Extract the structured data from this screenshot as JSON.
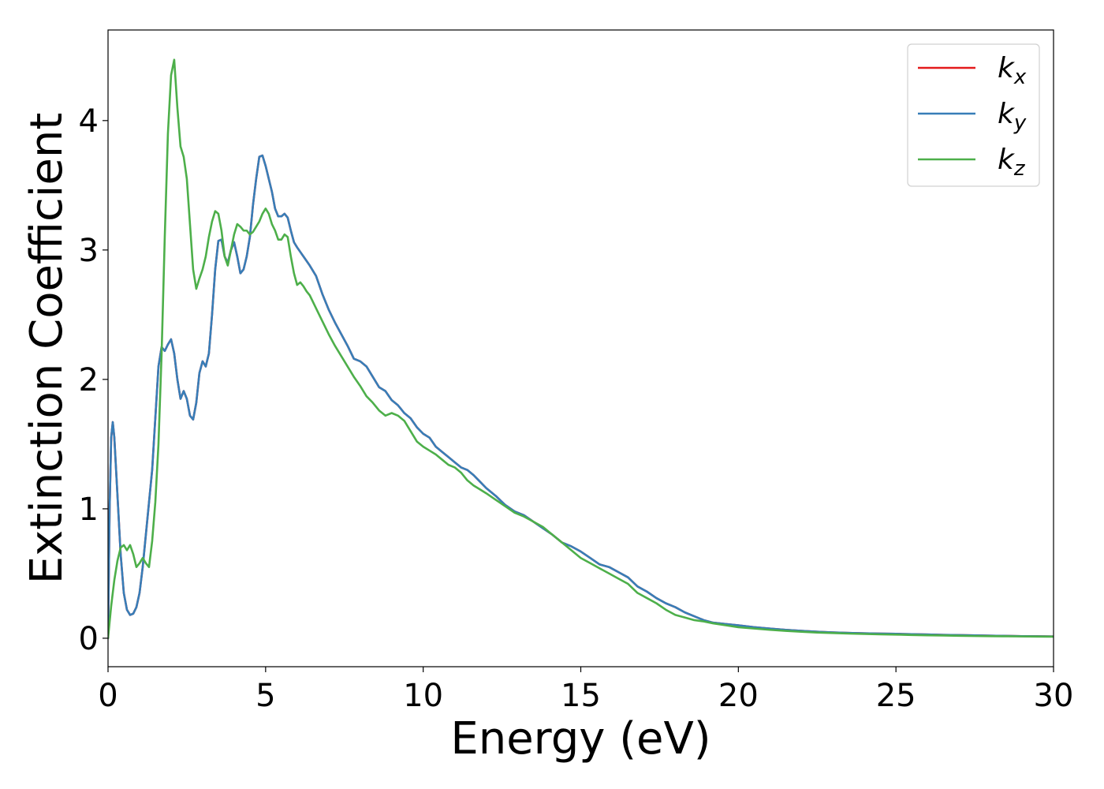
{
  "chart_data": {
    "type": "line",
    "xlabel": "Energy (eV)",
    "ylabel": "Extinction Coefficient",
    "xlim": [
      0,
      30
    ],
    "ylim": [
      -0.22,
      4.7
    ],
    "xticks": [
      0,
      5,
      10,
      15,
      20,
      25,
      30
    ],
    "yticks": [
      0,
      1,
      2,
      3,
      4
    ],
    "grid": false,
    "legend_position": "top-right",
    "series": [
      {
        "name": "k_x",
        "label_base": "k",
        "label_sub": "x",
        "color": "#e41a1c",
        "x": [
          0,
          0.05,
          0.1,
          0.15,
          0.2,
          0.3,
          0.4,
          0.5,
          0.6,
          0.7,
          0.8,
          0.9,
          1.0,
          1.1,
          1.2,
          1.3,
          1.4,
          1.5,
          1.6,
          1.7,
          1.8,
          1.9,
          2.0,
          2.1,
          2.2,
          2.3,
          2.4,
          2.5,
          2.6,
          2.7,
          2.8,
          2.9,
          3.0,
          3.1,
          3.2,
          3.3,
          3.4,
          3.5,
          3.6,
          3.7,
          3.8,
          3.9,
          4.0,
          4.1,
          4.2,
          4.3,
          4.4,
          4.5,
          4.6,
          4.7,
          4.8,
          4.9,
          5.0,
          5.1,
          5.2,
          5.3,
          5.4,
          5.5,
          5.6,
          5.7,
          5.8,
          5.9,
          6.0,
          6.2,
          6.4,
          6.6,
          6.8,
          7.0,
          7.2,
          7.4,
          7.6,
          7.8,
          8.0,
          8.2,
          8.4,
          8.6,
          8.8,
          9.0,
          9.2,
          9.4,
          9.6,
          9.8,
          10.0,
          10.2,
          10.4,
          10.6,
          10.8,
          11.0,
          11.2,
          11.4,
          11.6,
          11.8,
          12.0,
          12.3,
          12.6,
          12.9,
          13.2,
          13.5,
          13.8,
          14.1,
          14.4,
          14.7,
          15.0,
          15.3,
          15.6,
          15.9,
          16.2,
          16.5,
          16.8,
          17.1,
          17.4,
          17.7,
          18.0,
          18.3,
          18.6,
          18.9,
          19.2,
          19.6,
          20.0,
          20.5,
          21.0,
          21.5,
          22.0,
          22.5,
          23.0,
          23.5,
          24.0,
          24.5,
          25.0,
          25.5,
          26.0,
          26.5,
          27.0,
          27.5,
          28.0,
          28.5,
          29.0,
          29.5,
          30.0
        ],
        "y": [
          0.0,
          1.0,
          1.55,
          1.67,
          1.55,
          1.1,
          0.65,
          0.35,
          0.22,
          0.18,
          0.19,
          0.24,
          0.35,
          0.55,
          0.8,
          1.05,
          1.3,
          1.7,
          2.1,
          2.25,
          2.22,
          2.27,
          2.31,
          2.2,
          2.0,
          1.85,
          1.91,
          1.85,
          1.72,
          1.69,
          1.82,
          2.05,
          2.14,
          2.1,
          2.2,
          2.5,
          2.85,
          3.07,
          3.08,
          2.95,
          2.9,
          3.0,
          3.06,
          2.95,
          2.82,
          2.85,
          2.95,
          3.1,
          3.35,
          3.55,
          3.72,
          3.73,
          3.65,
          3.55,
          3.45,
          3.32,
          3.26,
          3.26,
          3.28,
          3.25,
          3.15,
          3.06,
          3.02,
          2.95,
          2.88,
          2.8,
          2.66,
          2.54,
          2.44,
          2.35,
          2.26,
          2.16,
          2.14,
          2.1,
          2.02,
          1.94,
          1.91,
          1.84,
          1.8,
          1.74,
          1.7,
          1.63,
          1.58,
          1.55,
          1.48,
          1.44,
          1.4,
          1.36,
          1.32,
          1.3,
          1.26,
          1.21,
          1.16,
          1.1,
          1.03,
          0.98,
          0.95,
          0.9,
          0.85,
          0.8,
          0.74,
          0.71,
          0.67,
          0.62,
          0.57,
          0.55,
          0.51,
          0.47,
          0.4,
          0.36,
          0.31,
          0.27,
          0.24,
          0.2,
          0.17,
          0.14,
          0.12,
          0.11,
          0.1,
          0.085,
          0.075,
          0.065,
          0.057,
          0.05,
          0.045,
          0.041,
          0.038,
          0.036,
          0.034,
          0.031,
          0.029,
          0.026,
          0.024,
          0.022,
          0.02,
          0.018,
          0.016,
          0.015,
          0.014
        ]
      },
      {
        "name": "k_y",
        "label_base": "k",
        "label_sub": "y",
        "color": "#377eb8",
        "x": [
          0,
          0.05,
          0.1,
          0.15,
          0.2,
          0.3,
          0.4,
          0.5,
          0.6,
          0.7,
          0.8,
          0.9,
          1.0,
          1.1,
          1.2,
          1.3,
          1.4,
          1.5,
          1.6,
          1.7,
          1.8,
          1.9,
          2.0,
          2.1,
          2.2,
          2.3,
          2.4,
          2.5,
          2.6,
          2.7,
          2.8,
          2.9,
          3.0,
          3.1,
          3.2,
          3.3,
          3.4,
          3.5,
          3.6,
          3.7,
          3.8,
          3.9,
          4.0,
          4.1,
          4.2,
          4.3,
          4.4,
          4.5,
          4.6,
          4.7,
          4.8,
          4.9,
          5.0,
          5.1,
          5.2,
          5.3,
          5.4,
          5.5,
          5.6,
          5.7,
          5.8,
          5.9,
          6.0,
          6.2,
          6.4,
          6.6,
          6.8,
          7.0,
          7.2,
          7.4,
          7.6,
          7.8,
          8.0,
          8.2,
          8.4,
          8.6,
          8.8,
          9.0,
          9.2,
          9.4,
          9.6,
          9.8,
          10.0,
          10.2,
          10.4,
          10.6,
          10.8,
          11.0,
          11.2,
          11.4,
          11.6,
          11.8,
          12.0,
          12.3,
          12.6,
          12.9,
          13.2,
          13.5,
          13.8,
          14.1,
          14.4,
          14.7,
          15.0,
          15.3,
          15.6,
          15.9,
          16.2,
          16.5,
          16.8,
          17.1,
          17.4,
          17.7,
          18.0,
          18.3,
          18.6,
          18.9,
          19.2,
          19.6,
          20.0,
          20.5,
          21.0,
          21.5,
          22.0,
          22.5,
          23.0,
          23.5,
          24.0,
          24.5,
          25.0,
          25.5,
          26.0,
          26.5,
          27.0,
          27.5,
          28.0,
          28.5,
          29.0,
          29.5,
          30.0
        ],
        "y": [
          0.0,
          1.0,
          1.55,
          1.67,
          1.55,
          1.1,
          0.65,
          0.35,
          0.22,
          0.18,
          0.19,
          0.24,
          0.35,
          0.55,
          0.8,
          1.05,
          1.3,
          1.7,
          2.1,
          2.25,
          2.22,
          2.27,
          2.31,
          2.2,
          2.0,
          1.85,
          1.91,
          1.85,
          1.72,
          1.69,
          1.82,
          2.05,
          2.14,
          2.1,
          2.2,
          2.5,
          2.85,
          3.07,
          3.08,
          2.95,
          2.9,
          3.0,
          3.06,
          2.95,
          2.82,
          2.85,
          2.95,
          3.1,
          3.35,
          3.55,
          3.72,
          3.73,
          3.65,
          3.55,
          3.45,
          3.32,
          3.26,
          3.26,
          3.28,
          3.25,
          3.15,
          3.06,
          3.02,
          2.95,
          2.88,
          2.8,
          2.66,
          2.54,
          2.44,
          2.35,
          2.26,
          2.16,
          2.14,
          2.1,
          2.02,
          1.94,
          1.91,
          1.84,
          1.8,
          1.74,
          1.7,
          1.63,
          1.58,
          1.55,
          1.48,
          1.44,
          1.4,
          1.36,
          1.32,
          1.3,
          1.26,
          1.21,
          1.16,
          1.1,
          1.03,
          0.98,
          0.95,
          0.9,
          0.85,
          0.8,
          0.74,
          0.71,
          0.67,
          0.62,
          0.57,
          0.55,
          0.51,
          0.47,
          0.4,
          0.36,
          0.31,
          0.27,
          0.24,
          0.2,
          0.17,
          0.14,
          0.12,
          0.11,
          0.1,
          0.085,
          0.075,
          0.065,
          0.057,
          0.05,
          0.045,
          0.041,
          0.038,
          0.036,
          0.034,
          0.031,
          0.029,
          0.026,
          0.024,
          0.022,
          0.02,
          0.018,
          0.016,
          0.015,
          0.014
        ]
      },
      {
        "name": "k_z",
        "label_base": "k",
        "label_sub": "z",
        "color": "#4daf4a",
        "x": [
          0,
          0.1,
          0.2,
          0.3,
          0.4,
          0.5,
          0.6,
          0.7,
          0.8,
          0.9,
          1.0,
          1.1,
          1.2,
          1.3,
          1.4,
          1.5,
          1.6,
          1.7,
          1.8,
          1.9,
          2.0,
          2.1,
          2.2,
          2.3,
          2.4,
          2.5,
          2.6,
          2.7,
          2.8,
          2.9,
          3.0,
          3.1,
          3.2,
          3.3,
          3.4,
          3.5,
          3.6,
          3.7,
          3.8,
          3.9,
          4.0,
          4.1,
          4.2,
          4.3,
          4.4,
          4.5,
          4.6,
          4.7,
          4.8,
          4.9,
          5.0,
          5.1,
          5.2,
          5.3,
          5.4,
          5.5,
          5.6,
          5.7,
          5.8,
          5.9,
          6.0,
          6.1,
          6.2,
          6.3,
          6.4,
          6.6,
          6.8,
          7.0,
          7.2,
          7.4,
          7.6,
          7.8,
          8.0,
          8.2,
          8.4,
          8.6,
          8.8,
          9.0,
          9.2,
          9.4,
          9.6,
          9.8,
          10.0,
          10.2,
          10.4,
          10.6,
          10.8,
          11.0,
          11.2,
          11.4,
          11.6,
          11.8,
          12.0,
          12.3,
          12.6,
          12.9,
          13.2,
          13.5,
          13.8,
          14.1,
          14.4,
          14.7,
          15.0,
          15.3,
          15.6,
          15.9,
          16.2,
          16.5,
          16.8,
          17.1,
          17.4,
          17.7,
          18.0,
          18.3,
          18.6,
          18.9,
          19.2,
          19.6,
          20.0,
          20.5,
          21.0,
          21.5,
          22.0,
          22.5,
          23.0,
          23.5,
          24.0,
          24.5,
          25.0,
          25.5,
          26.0,
          26.5,
          27.0,
          27.5,
          28.0,
          28.5,
          29.0,
          29.5,
          30.0
        ],
        "y": [
          0.0,
          0.25,
          0.45,
          0.6,
          0.7,
          0.72,
          0.68,
          0.72,
          0.65,
          0.55,
          0.58,
          0.62,
          0.58,
          0.55,
          0.75,
          1.05,
          1.5,
          2.2,
          3.1,
          3.9,
          4.35,
          4.47,
          4.1,
          3.8,
          3.72,
          3.55,
          3.2,
          2.85,
          2.7,
          2.78,
          2.85,
          2.95,
          3.1,
          3.22,
          3.3,
          3.28,
          3.15,
          2.95,
          2.88,
          3.0,
          3.12,
          3.2,
          3.18,
          3.15,
          3.15,
          3.12,
          3.14,
          3.18,
          3.22,
          3.28,
          3.32,
          3.28,
          3.2,
          3.15,
          3.08,
          3.08,
          3.12,
          3.1,
          2.95,
          2.82,
          2.73,
          2.75,
          2.72,
          2.68,
          2.65,
          2.55,
          2.45,
          2.35,
          2.26,
          2.18,
          2.1,
          2.02,
          1.95,
          1.87,
          1.82,
          1.76,
          1.72,
          1.74,
          1.72,
          1.68,
          1.6,
          1.52,
          1.48,
          1.45,
          1.42,
          1.38,
          1.34,
          1.32,
          1.28,
          1.22,
          1.18,
          1.15,
          1.12,
          1.07,
          1.02,
          0.97,
          0.94,
          0.9,
          0.86,
          0.8,
          0.74,
          0.68,
          0.62,
          0.58,
          0.54,
          0.5,
          0.46,
          0.42,
          0.35,
          0.31,
          0.27,
          0.22,
          0.18,
          0.16,
          0.14,
          0.13,
          0.115,
          0.1,
          0.085,
          0.075,
          0.065,
          0.057,
          0.05,
          0.044,
          0.04,
          0.036,
          0.033,
          0.03,
          0.028,
          0.025,
          0.023,
          0.021,
          0.019,
          0.017,
          0.016,
          0.015,
          0.014,
          0.013,
          0.012
        ]
      }
    ]
  }
}
